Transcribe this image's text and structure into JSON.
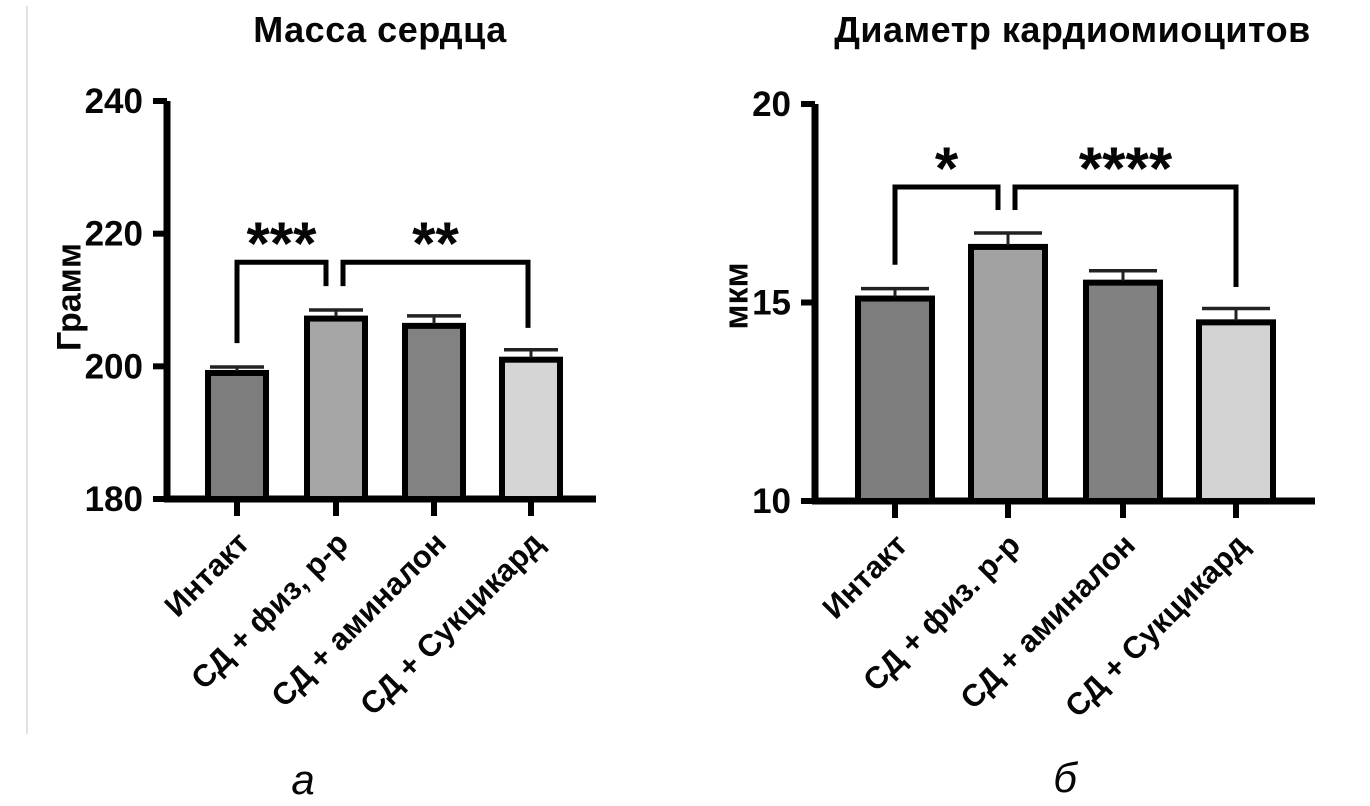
{
  "figure": {
    "background": "#ffffff",
    "axis_color": "#000000",
    "error_bar_color": "#222222"
  },
  "chart_data": [
    {
      "type": "bar",
      "panel_label": "а",
      "title": "Масса сердца",
      "xlabel": "",
      "ylabel": "Грамм",
      "ylim": [
        180,
        240
      ],
      "yticks": [
        180,
        200,
        220,
        240
      ],
      "grid": false,
      "legend": null,
      "categories": [
        "Интакт",
        "СД + физ, р-р",
        "СД + аминалон",
        "СД + Сукцикард"
      ],
      "values": [
        199.0,
        207.2,
        206.1,
        201.0
      ],
      "errors": [
        0.9,
        1.3,
        1.5,
        1.5
      ],
      "bar_colors": [
        "#7d7d7d",
        "#a5a5a5",
        "#828282",
        "#d5d5d5"
      ],
      "bar_outline": "#000000",
      "significance": [
        {
          "label": "***",
          "from_bar": 0,
          "to_bar": 1,
          "from_dx": 0,
          "to_dx": -10,
          "bar_y": 215.7,
          "leg_from_y": 203.5,
          "leg_to_y": 212.1
        },
        {
          "label": "**",
          "from_bar": 1,
          "to_bar": 3,
          "from_dx": 7,
          "to_dx": -3,
          "bar_y": 215.7,
          "leg_from_y": 212.1,
          "leg_to_y": 205.8
        }
      ]
    },
    {
      "type": "bar",
      "panel_label": "б",
      "title": "Диаметр кардиомиоцитов",
      "xlabel": "",
      "ylabel": "мкм",
      "ylim": [
        10,
        20
      ],
      "yticks": [
        10,
        15,
        20
      ],
      "grid": false,
      "legend": null,
      "categories": [
        "Интакт",
        "СД + физ. р-р",
        "СД + аминалон",
        "СД + Сукцикард"
      ],
      "values": [
        15.1,
        16.4,
        15.5,
        14.5
      ],
      "errors": [
        0.25,
        0.35,
        0.3,
        0.35
      ],
      "bar_colors": [
        "#7d7d7d",
        "#a2a2a2",
        "#818181",
        "#d2d2d2"
      ],
      "bar_outline": "#000000",
      "significance": [
        {
          "label": "*",
          "from_bar": 0,
          "to_bar": 1,
          "from_dx": 0,
          "to_dx": -10,
          "bar_y": 17.91,
          "leg_from_y": 15.95,
          "leg_to_y": 17.33
        },
        {
          "label": "****",
          "from_bar": 1,
          "to_bar": 3,
          "from_dx": 7,
          "to_dx": 0,
          "bar_y": 17.91,
          "leg_from_y": 17.33,
          "leg_to_y": 15.39
        }
      ]
    }
  ]
}
